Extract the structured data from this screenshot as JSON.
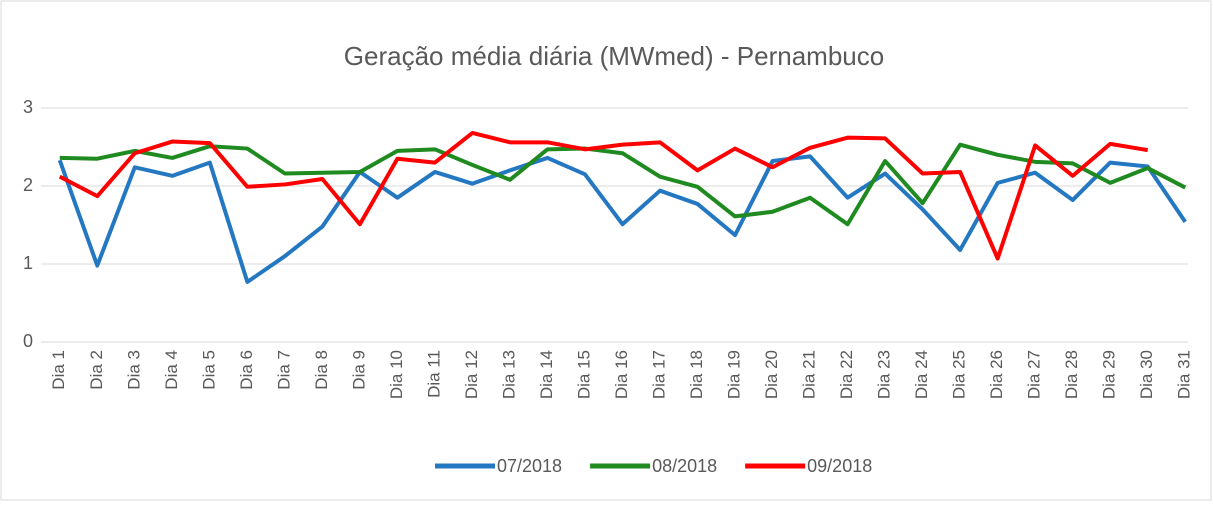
{
  "chart_data": {
    "type": "line",
    "title": "Geração média diária (MWmed) - Pernambuco",
    "categories": [
      "Dia 1",
      "Dia 2",
      "Dia 3",
      "Dia 4",
      "Dia 5",
      "Dia 6",
      "Dia 7",
      "Dia 8",
      "Dia 9",
      "Dia 10",
      "Dia 11",
      "Dia 12",
      "Dia 13",
      "Dia 14",
      "Dia 15",
      "Dia 16",
      "Dia 17",
      "Dia 18",
      "Dia 19",
      "Dia 20",
      "Dia 21",
      "Dia 22",
      "Dia 23",
      "Dia 24",
      "Dia 25",
      "Dia 26",
      "Dia 27",
      "Dia 28",
      "Dia 29",
      "Dia 30",
      "Dia 31"
    ],
    "series": [
      {
        "name": "07/2018",
        "color": "#2478c2",
        "values": [
          2.33,
          0.98,
          2.24,
          2.13,
          2.3,
          0.77,
          1.1,
          1.48,
          2.18,
          1.85,
          2.18,
          2.03,
          2.2,
          2.36,
          2.15,
          1.51,
          1.94,
          1.77,
          1.37,
          2.32,
          2.38,
          1.85,
          2.16,
          1.7,
          1.18,
          2.04,
          2.17,
          1.82,
          2.3,
          2.25,
          1.54
        ]
      },
      {
        "name": "08/2018",
        "color": "#1f8a1f",
        "values": [
          2.36,
          2.35,
          2.45,
          2.36,
          2.51,
          2.48,
          2.16,
          2.17,
          2.18,
          2.45,
          2.47,
          2.27,
          2.08,
          2.47,
          2.48,
          2.42,
          2.12,
          1.99,
          1.61,
          1.67,
          1.85,
          1.51,
          2.32,
          1.78,
          2.53,
          2.4,
          2.31,
          2.29,
          2.04,
          2.23,
          1.98
        ]
      },
      {
        "name": "09/2018",
        "color": "#ff0000",
        "values": [
          2.12,
          1.87,
          2.42,
          2.57,
          2.55,
          1.99,
          2.02,
          2.09,
          1.51,
          2.35,
          2.3,
          2.68,
          2.56,
          2.56,
          2.47,
          2.53,
          2.56,
          2.2,
          2.48,
          2.24,
          2.49,
          2.62,
          2.61,
          2.16,
          2.18,
          1.07,
          2.52,
          2.13,
          2.54,
          2.46,
          null
        ]
      }
    ],
    "ylim": [
      0,
      3
    ],
    "yticks": [
      0,
      1,
      2,
      3
    ],
    "grid": true,
    "legend": "bottom"
  }
}
